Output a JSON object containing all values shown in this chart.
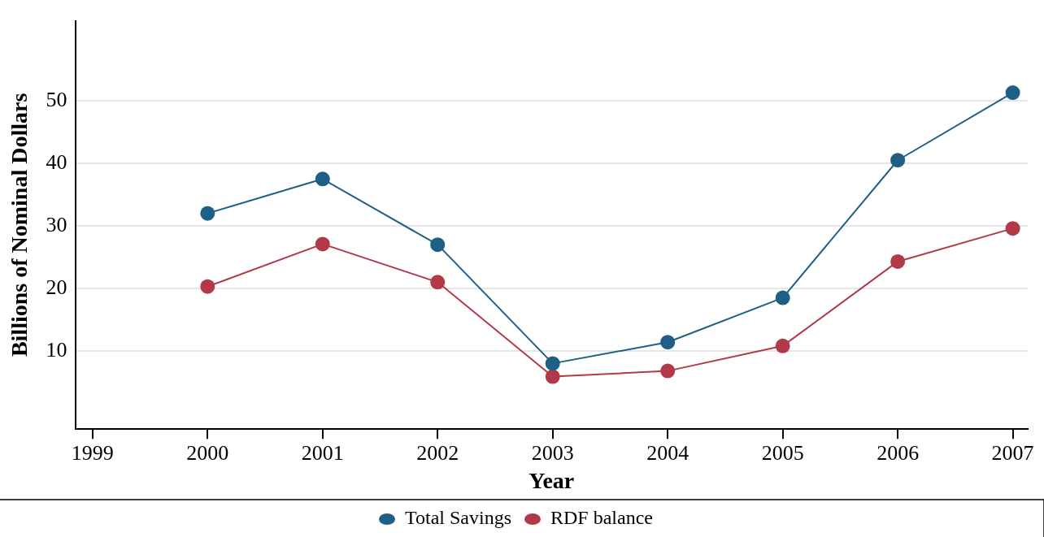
{
  "chart_data": {
    "type": "line",
    "xlabel": "Year",
    "ylabel": "Billions of Nominal Dollars",
    "x": [
      2000,
      2001,
      2002,
      2003,
      2004,
      2005,
      2006,
      2007
    ],
    "series": [
      {
        "name": "Total Savings",
        "color": "#1f5f86",
        "values": [
          32.0,
          37.5,
          27.0,
          8.0,
          11.4,
          18.5,
          40.5,
          51.3
        ]
      },
      {
        "name": "RDF balance",
        "color": "#b23a48",
        "values": [
          20.3,
          27.1,
          21.0,
          5.9,
          6.8,
          10.8,
          24.3,
          29.6
        ]
      }
    ],
    "xlim": [
      1998.85,
      2007.13
    ],
    "xticks": [
      1999,
      2000,
      2001,
      2002,
      2003,
      2004,
      2005,
      2006,
      2007
    ],
    "ylim": [
      -2.5,
      62.8
    ],
    "yticks": [
      10,
      20,
      30,
      40,
      50
    ],
    "grid": "y",
    "legend": "bottom",
    "marker": "circle",
    "line_style": "solid"
  }
}
